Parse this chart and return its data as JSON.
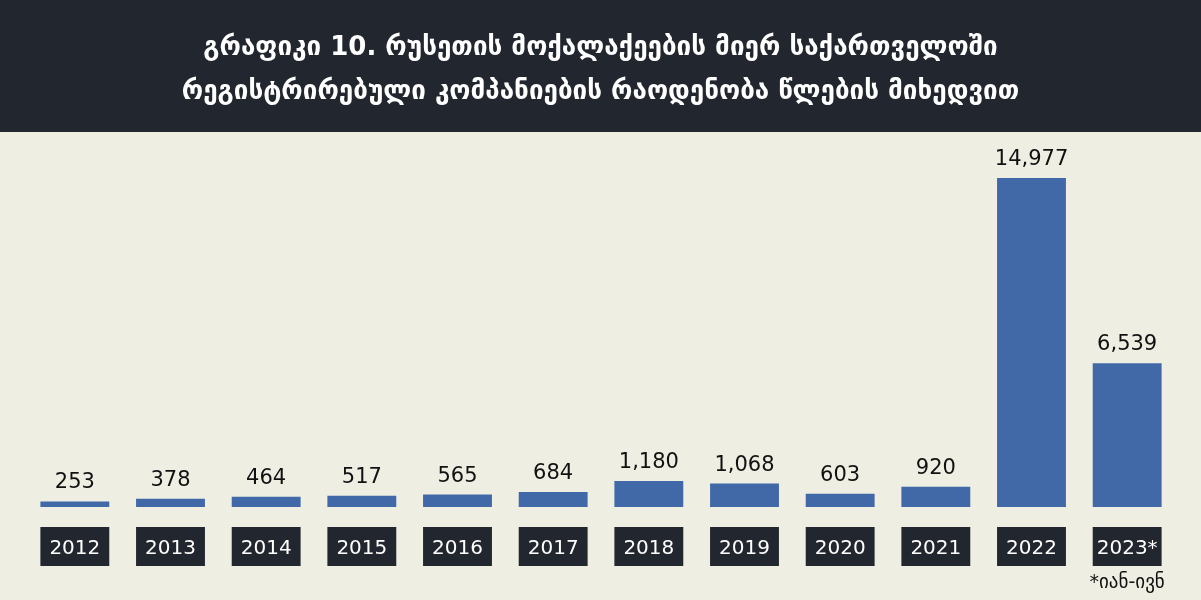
{
  "chart_data": {
    "type": "bar",
    "title": "გრაფიკი 10. რუსეთის მოქალაქეების მიერ საქართველოში რეგისტრირებული კომპანიების რაოდენობა წლების მიხედვით",
    "categories": [
      "2012",
      "2013",
      "2014",
      "2015",
      "2016",
      "2017",
      "2018",
      "2019",
      "2020",
      "2021",
      "2022",
      "2023*"
    ],
    "values": [
      253,
      378,
      464,
      517,
      565,
      684,
      1180,
      1068,
      603,
      920,
      14977,
      6539
    ],
    "value_labels": [
      "253",
      "378",
      "464",
      "517",
      "565",
      "684",
      "1,180",
      "1,068",
      "603",
      "920",
      "14,977",
      "6,539"
    ],
    "color": "#4169a8",
    "tick_labels": "x",
    "annotations": [
      "*იან-ივნ"
    ]
  }
}
